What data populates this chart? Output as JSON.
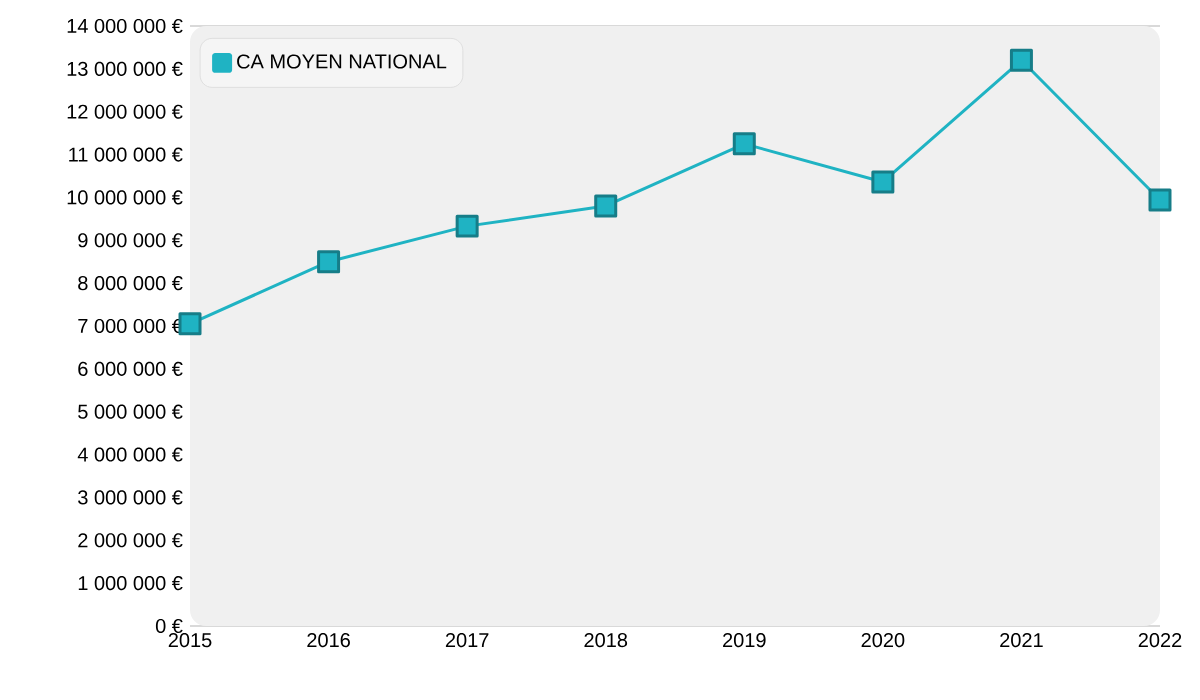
{
  "chart_data": {
    "type": "line",
    "x": [
      2015,
      2016,
      2017,
      2018,
      2019,
      2020,
      2021,
      2022
    ],
    "series": [
      {
        "name": "CA MOYEN NATIONAL",
        "color": "#1fb3c3",
        "values": [
          7050000,
          8500000,
          9330000,
          9800000,
          11250000,
          10360000,
          13200000,
          9940000
        ]
      }
    ],
    "xlim": [
      2015,
      2022
    ],
    "xticks": [
      2015,
      2016,
      2017,
      2018,
      2019,
      2020,
      2021,
      2022
    ],
    "ylim": [
      0,
      14000000
    ],
    "yticks": [
      {
        "value": 0,
        "label": "0 €"
      },
      {
        "value": 1000000,
        "label": "1 000 000 €"
      },
      {
        "value": 2000000,
        "label": "2 000 000 €"
      },
      {
        "value": 3000000,
        "label": "3 000 000 €"
      },
      {
        "value": 4000000,
        "label": "4 000 000 €"
      },
      {
        "value": 5000000,
        "label": "5 000 000 €"
      },
      {
        "value": 6000000,
        "label": "6 000 000 €"
      },
      {
        "value": 7000000,
        "label": "7 000 000 €"
      },
      {
        "value": 8000000,
        "label": "8 000 000 €"
      },
      {
        "value": 9000000,
        "label": "9 000 000 €"
      },
      {
        "value": 10000000,
        "label": "10 000 000 €"
      },
      {
        "value": 11000000,
        "label": "11 000 000 €"
      },
      {
        "value": 12000000,
        "label": "12 000 000 €"
      },
      {
        "value": 13000000,
        "label": "13 000 000 €"
      },
      {
        "value": 14000000,
        "label": "14 000 000 €"
      }
    ],
    "grid": "y",
    "legend": "top left",
    "marker": "square",
    "line_style": "solid"
  }
}
